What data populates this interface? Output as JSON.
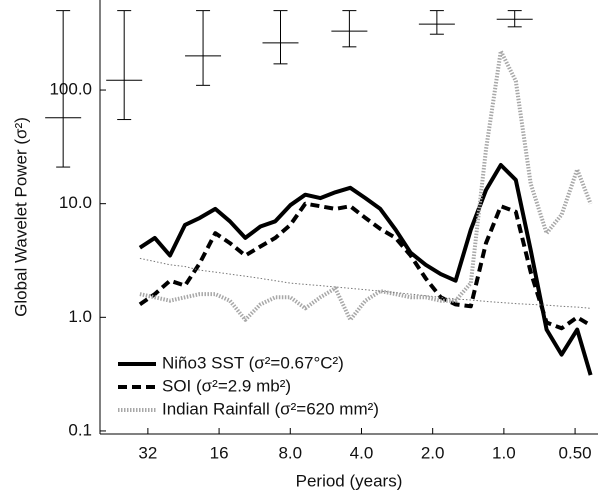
{
  "chart_data": {
    "type": "line",
    "x_label": "Period (years)",
    "y_label": "Global Wavelet Power (σ²)",
    "log_x": true,
    "log_y": true,
    "x_reversed": true,
    "xlim": [
      51,
      0.4
    ],
    "ylim": [
      0.094,
      620
    ],
    "xticks": [
      32,
      16,
      {
        "value": 8,
        "label": "8.0"
      },
      {
        "value": 4,
        "label": "4.0"
      },
      {
        "value": 2,
        "label": "2.0"
      },
      {
        "value": 1,
        "label": "1.0"
      },
      {
        "value": 0.5,
        "label": "0.50"
      }
    ],
    "yticks": [
      0.1,
      {
        "value": 1,
        "label": "1.0"
      },
      {
        "value": 10,
        "label": "10.0"
      },
      {
        "value": 100,
        "label": "100.0"
      }
    ],
    "legend": "lower-left",
    "x": [
      34.6,
      29.9,
      25.8,
      22.3,
      19.3,
      16.6,
      14.4,
      12.4,
      10.7,
      9.26,
      8.0,
      6.91,
      5.97,
      5.16,
      4.46,
      3.85,
      3.33,
      2.87,
      2.48,
      2.14,
      1.85,
      1.6,
      1.38,
      1.19,
      1.03,
      0.89,
      0.77,
      0.66,
      0.57,
      0.49,
      0.43
    ],
    "series": [
      {
        "name": "Niño3 SST (σ²=0.67°C²)",
        "color": "#000000",
        "style": "solid",
        "values": [
          4.1,
          5.0,
          3.5,
          6.5,
          7.5,
          9.0,
          7.0,
          5.0,
          6.3,
          7.0,
          9.7,
          12.0,
          11.2,
          12.6,
          13.8,
          11.2,
          9.0,
          5.9,
          3.7,
          2.9,
          2.4,
          2.1,
          5.9,
          13.2,
          21.9,
          16.2,
          3.9,
          0.78,
          0.47,
          0.78,
          0.31
        ]
      },
      {
        "name": "SOI (σ²=2.9 mb²)",
        "color": "#000000",
        "style": "dashed",
        "values": [
          1.3,
          1.6,
          2.1,
          1.9,
          3.0,
          5.5,
          4.5,
          3.5,
          4.2,
          5.0,
          6.5,
          10.0,
          9.5,
          9.0,
          9.5,
          7.5,
          6.0,
          5.0,
          3.5,
          2.2,
          1.5,
          1.3,
          1.25,
          4.5,
          9.5,
          8.5,
          2.5,
          0.9,
          0.8,
          1.0,
          0.85
        ]
      },
      {
        "name": "Indian Rainfall (σ²=620 mm²)",
        "color": "#a8a8a8",
        "style": "dotted",
        "values": [
          1.6,
          1.5,
          1.4,
          1.5,
          1.6,
          1.6,
          1.4,
          0.95,
          1.3,
          1.5,
          1.5,
          1.2,
          1.5,
          1.8,
          0.95,
          1.4,
          1.7,
          1.6,
          1.5,
          1.5,
          1.4,
          1.4,
          2.0,
          30,
          220,
          120,
          15,
          5.5,
          8,
          20,
          10
        ]
      },
      {
        "color": "#777777",
        "style": "fine-dotted",
        "values": [
          3.3,
          3.1,
          2.9,
          2.8,
          2.6,
          2.5,
          2.4,
          2.3,
          2.2,
          2.1,
          2.0,
          1.95,
          1.9,
          1.85,
          1.8,
          1.75,
          1.7,
          1.65,
          1.6,
          1.55,
          1.5,
          1.45,
          1.42,
          1.38,
          1.35,
          1.32,
          1.3,
          1.28,
          1.25,
          1.23,
          1.2
        ]
      }
    ],
    "error_bars": {
      "color": "#000000",
      "x": [
        73,
        40.3,
        18.7,
        8.8,
        4.5,
        1.92,
        0.9
      ],
      "values": [
        57,
        122,
        200,
        260,
        330,
        380,
        420
      ],
      "lower": [
        21,
        55,
        110,
        170,
        240,
        310,
        360
      ],
      "upper": [
        500,
        500,
        500,
        500,
        500,
        500,
        500
      ]
    }
  }
}
